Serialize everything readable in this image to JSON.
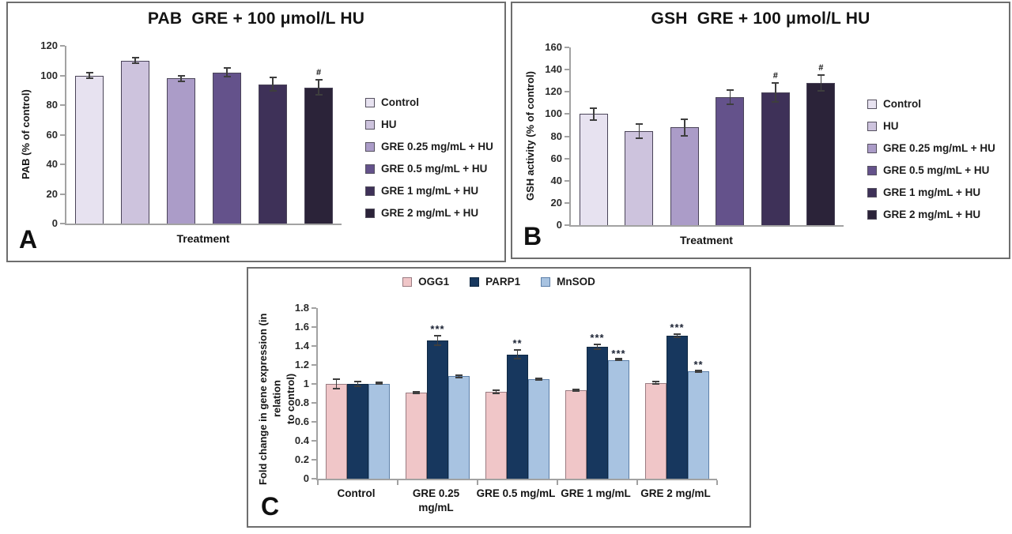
{
  "figure": {
    "panel_letters": [
      "A",
      "B",
      "C"
    ]
  },
  "chart_data": [
    {
      "type": "bar",
      "panel_label": "A",
      "title": "PAB  GRE + 100 μmol/L HU",
      "ylabel": "PAB (% of control)",
      "xlabel": "Treatment",
      "ylim": [
        0,
        120
      ],
      "ytick_step": 20,
      "grid": false,
      "legend_position": "right",
      "categories": [
        "Control",
        "HU",
        "GRE 0.25 mg/mL + HU",
        "GRE 0.5 mg/mL + HU",
        "GRE 1 mg/mL + HU",
        "GRE 2 mg/mL + HU"
      ],
      "values": [
        100,
        110,
        98,
        102,
        94,
        92
      ],
      "errors": [
        2.5,
        2.5,
        2.5,
        3.5,
        5,
        5.5
      ],
      "annotations": [
        "",
        "",
        "",
        "",
        "",
        "#"
      ],
      "bar_colors": [
        "#e7e2f0",
        "#cdc3dd",
        "#ab9cc8",
        "#64528b",
        "#3e3158",
        "#2b2339"
      ]
    },
    {
      "type": "bar",
      "panel_label": "B",
      "title": "GSH  GRE + 100 μmol/L HU",
      "ylabel": "GSH activity (% of control)",
      "xlabel": "Treatment",
      "ylim": [
        0,
        160
      ],
      "ytick_step": 20,
      "grid": false,
      "legend_position": "right",
      "categories": [
        "Control",
        "HU",
        "GRE 0.25 mg/mL + HU",
        "GRE 0.5 mg/mL + HU",
        "GRE 1 mg/mL + HU",
        "GRE 2 mg/mL + HU"
      ],
      "values": [
        100,
        84.5,
        88,
        115,
        119.5,
        128
      ],
      "errors": [
        6,
        7,
        8,
        7,
        9,
        8
      ],
      "annotations": [
        "",
        "",
        "",
        "",
        "#",
        "#"
      ],
      "bar_colors": [
        "#e7e2f0",
        "#cdc3dd",
        "#ab9cc8",
        "#64528b",
        "#3e3158",
        "#2b2339"
      ]
    },
    {
      "type": "grouped-bar",
      "panel_label": "C",
      "title": "",
      "ylabel": "Fold change in gene expression (in relation\nto control)",
      "xlabel": "",
      "ylim": [
        0,
        1.8
      ],
      "ytick_step": 0.2,
      "grid": false,
      "legend_position": "top",
      "categories": [
        "Control",
        "GRE 0.25\nmg/mL",
        "GRE 0.5 mg/mL",
        "GRE 1 mg/mL",
        "GRE 2 mg/mL"
      ],
      "series": [
        {
          "name": "OGG1",
          "color": "#f0c6c8",
          "border": "#9a7c82",
          "values": [
            1.0,
            0.91,
            0.92,
            0.93,
            1.01
          ],
          "errors": [
            0.06,
            0.015,
            0.025,
            0.015,
            0.02
          ],
          "annotations": [
            "",
            "",
            "",
            "",
            ""
          ]
        },
        {
          "name": "PARP1",
          "color": "#17375e",
          "border": "#102943",
          "values": [
            1.0,
            1.46,
            1.31,
            1.39,
            1.51
          ],
          "errors": [
            0.035,
            0.06,
            0.055,
            0.035,
            0.025
          ],
          "annotations": [
            "",
            "***",
            "**",
            "***",
            "***"
          ]
        },
        {
          "name": "MnSOD",
          "color": "#a8c3e1",
          "border": "#5d80a9",
          "values": [
            1.0,
            1.08,
            1.05,
            1.25,
            1.13
          ],
          "errors": [
            0.012,
            0.02,
            0.015,
            0.01,
            0.015
          ],
          "annotations": [
            "",
            "",
            "",
            "***",
            "**"
          ]
        }
      ]
    }
  ]
}
